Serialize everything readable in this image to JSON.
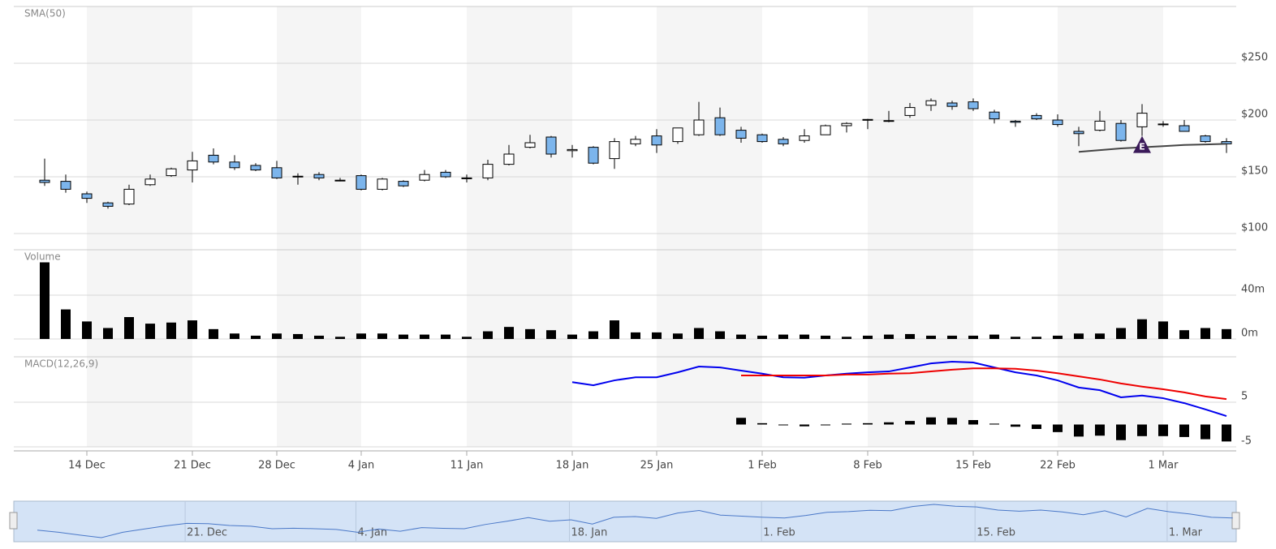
{
  "chart_data": [
    {
      "type": "candlestick",
      "title": "SMA(50)",
      "categories": [
        null,
        null,
        "14 Dec",
        null,
        null,
        null,
        null,
        "21 Dec",
        null,
        null,
        null,
        "28 Dec",
        null,
        null,
        null,
        "4 Jan",
        null,
        null,
        null,
        null,
        "11 Jan",
        null,
        null,
        null,
        null,
        "18 Jan",
        null,
        null,
        null,
        "25 Jan",
        null,
        null,
        null,
        null,
        "1 Feb",
        null,
        null,
        null,
        null,
        "8 Feb",
        null,
        null,
        null,
        null,
        "15 Feb",
        null,
        null,
        null,
        "22 Feb",
        null,
        null,
        null,
        null,
        "1 Mar",
        null,
        null,
        null
      ],
      "open": [
        147,
        146,
        135,
        127,
        126,
        143,
        151,
        156,
        169,
        163,
        160,
        158,
        150,
        152,
        147,
        151,
        139,
        146,
        147,
        154,
        148.5,
        149,
        161,
        176,
        185,
        173,
        176,
        166,
        179,
        186,
        181,
        187,
        202,
        191,
        187,
        183,
        182,
        187,
        195,
        200,
        199,
        204,
        213,
        215,
        216,
        207,
        199,
        204,
        200,
        190,
        191,
        197,
        194,
        196,
        195,
        186,
        181
      ],
      "high": [
        166,
        152,
        137,
        128,
        143,
        152,
        158,
        172,
        175,
        169,
        162,
        164,
        153,
        154,
        149,
        152,
        149,
        147,
        156,
        156,
        152,
        165,
        178,
        187,
        186,
        178,
        177,
        184,
        186,
        192,
        193,
        216,
        211,
        194,
        188,
        185,
        192,
        196,
        198,
        201,
        208,
        215,
        219,
        217,
        219,
        209,
        200,
        206,
        205,
        194,
        208,
        200,
        214,
        199,
        200,
        187,
        184
      ],
      "low": [
        142,
        136,
        127,
        122,
        125,
        142,
        150,
        145,
        161,
        156,
        155,
        148,
        143,
        147,
        146,
        138,
        138,
        141,
        146,
        149,
        145,
        147,
        160,
        175,
        167,
        167,
        161,
        157,
        177,
        171,
        179,
        186,
        186,
        180,
        180,
        177,
        180,
        187,
        189,
        192,
        198,
        202,
        208,
        209,
        208,
        197,
        194,
        200,
        194,
        177,
        190,
        181,
        186,
        194,
        190,
        180,
        171
      ],
      "close": [
        145,
        139,
        131,
        124,
        139,
        148,
        157,
        164,
        163,
        158,
        156,
        149,
        150.5,
        149,
        147,
        139,
        148,
        142,
        152,
        150,
        149,
        161,
        170,
        180,
        170,
        174,
        162,
        181,
        183,
        178,
        193,
        200,
        187,
        184,
        181,
        179,
        186,
        195,
        197,
        200.5,
        199.5,
        211,
        217,
        212,
        210,
        201,
        198,
        201,
        196,
        188,
        199,
        182,
        206,
        196.5,
        190,
        181,
        179
      ],
      "sma": [
        null,
        null,
        null,
        null,
        null,
        null,
        null,
        null,
        null,
        null,
        null,
        null,
        null,
        null,
        null,
        null,
        null,
        null,
        null,
        null,
        null,
        null,
        null,
        null,
        null,
        null,
        null,
        null,
        null,
        null,
        null,
        null,
        null,
        null,
        null,
        null,
        null,
        null,
        null,
        null,
        null,
        null,
        null,
        null,
        null,
        null,
        null,
        null,
        null,
        172,
        173.5,
        175,
        176,
        177,
        178,
        178.5,
        179
      ],
      "sma_color": "#444444",
      "event_labels": [
        null,
        null,
        null,
        null,
        null,
        null,
        null,
        null,
        null,
        null,
        null,
        null,
        null,
        null,
        null,
        null,
        null,
        null,
        null,
        null,
        null,
        null,
        null,
        null,
        null,
        null,
        null,
        null,
        null,
        null,
        null,
        null,
        null,
        null,
        null,
        null,
        null,
        null,
        null,
        null,
        null,
        null,
        null,
        null,
        null,
        null,
        null,
        null,
        null,
        null,
        null,
        null,
        "E",
        null,
        null,
        null,
        null
      ],
      "event_color": "#3b1a5a",
      "up_color": "#ffffff",
      "down_color": "#7cb5ec",
      "ylim": [
        100,
        300
      ],
      "yticks": [
        {
          "value": 100,
          "label": "$100"
        },
        {
          "value": 150,
          "label": "$150"
        },
        {
          "value": 200,
          "label": "$200"
        },
        {
          "value": 250,
          "label": "$250"
        }
      ],
      "grid": true
    },
    {
      "type": "bar",
      "title": "Volume",
      "color": "#000000",
      "values": [
        70,
        27,
        16,
        10,
        20,
        14,
        15,
        17,
        9,
        5,
        3,
        5,
        4.5,
        3,
        2,
        5,
        5,
        4,
        4,
        4,
        2,
        7,
        11,
        9,
        8,
        4,
        7,
        17,
        6,
        6,
        5,
        10,
        7,
        4,
        3,
        4,
        4,
        3,
        2,
        3,
        4,
        4.5,
        3,
        3,
        3,
        4,
        2,
        2,
        3,
        5,
        5,
        10,
        18,
        16,
        8,
        10,
        9
      ],
      "ylim": [
        0,
        80
      ],
      "yticks": [
        {
          "value": 0,
          "label": "0m"
        },
        {
          "value": 40,
          "label": "40m"
        }
      ],
      "grid": true
    },
    {
      "type": "macd",
      "title": "MACD(12,26,9)",
      "series": [
        {
          "color": "#0000ee",
          "values": [
            null,
            null,
            null,
            null,
            null,
            null,
            null,
            null,
            null,
            null,
            null,
            null,
            null,
            null,
            null,
            null,
            null,
            null,
            null,
            null,
            null,
            null,
            null,
            null,
            null,
            9.5,
            8.8,
            9.9,
            10.6,
            10.6,
            11.7,
            13,
            12.8,
            12.1,
            11.4,
            10.6,
            10.5,
            11,
            11.4,
            11.7,
            11.9,
            12.8,
            13.7,
            14.1,
            13.9,
            12.8,
            11.7,
            11,
            9.9,
            8.3,
            7.7,
            6.1,
            6.5,
            5.9,
            4.8,
            3.4,
            1.9
          ]
        },
        {
          "color": "#ee0000",
          "values": [
            null,
            null,
            null,
            null,
            null,
            null,
            null,
            null,
            null,
            null,
            null,
            null,
            null,
            null,
            null,
            null,
            null,
            null,
            null,
            null,
            null,
            null,
            null,
            null,
            null,
            null,
            null,
            null,
            null,
            null,
            null,
            null,
            null,
            11,
            11,
            11,
            11,
            11,
            11.2,
            11.2,
            11.4,
            11.5,
            11.9,
            12.3,
            12.6,
            12.6,
            12.5,
            12.1,
            11.5,
            10.8,
            10.1,
            9.2,
            8.5,
            7.9,
            7.2,
            6.3,
            5.7
          ]
        }
      ],
      "histogram": {
        "color": "#000000",
        "values": [
          null,
          null,
          null,
          null,
          null,
          null,
          null,
          null,
          null,
          null,
          null,
          null,
          null,
          null,
          null,
          null,
          null,
          null,
          null,
          null,
          null,
          null,
          null,
          null,
          null,
          null,
          null,
          null,
          null,
          null,
          null,
          null,
          null,
          1.5,
          0.3,
          -0.1,
          -0.4,
          0,
          0.2,
          0.3,
          0.5,
          0.8,
          1.6,
          1.5,
          1,
          0.2,
          -0.5,
          -1,
          -1.7,
          -2.7,
          -2.5,
          -3.5,
          -2.6,
          -2.6,
          -2.8,
          -3.3,
          -3.8
        ]
      },
      "ylim": [
        -5,
        15
      ],
      "yticks": [
        -5,
        5
      ],
      "grid": true
    }
  ],
  "navigator": {
    "labels": [
      null,
      null,
      null,
      null,
      null,
      null,
      null,
      "21. Dec",
      null,
      null,
      null,
      null,
      null,
      null,
      null,
      "4. Jan",
      null,
      null,
      null,
      null,
      null,
      null,
      null,
      null,
      null,
      "18. Jan",
      null,
      null,
      null,
      null,
      null,
      null,
      null,
      null,
      "1. Feb",
      null,
      null,
      null,
      null,
      null,
      null,
      null,
      null,
      null,
      "15. Feb",
      null,
      null,
      null,
      null,
      null,
      null,
      null,
      null,
      "1. Mar",
      null,
      null,
      null
    ],
    "color": "#4a78c8"
  }
}
